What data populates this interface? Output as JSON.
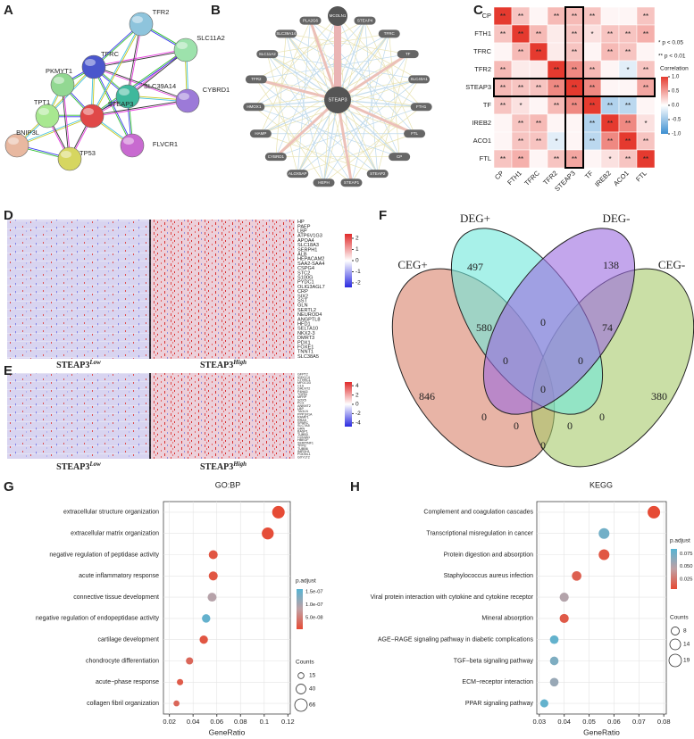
{
  "chart_data": [
    {
      "panel": "A",
      "type": "network",
      "nodes": [
        "TFR2",
        "SLC11A2",
        "PKMYT1",
        "TFRC",
        "SLC39A14",
        "CYBRD1",
        "TPT1",
        "STEAP3",
        "BNIP3L",
        "FLVCR1",
        "TP53"
      ],
      "colors": [
        "#8ec4dc",
        "#9de2ac",
        "#92d892",
        "#4a56cc",
        "#3fb89c",
        "#9c7ad8",
        "#a8e890",
        "#e04848",
        "#e8b8a0",
        "#c86ad0",
        "#d6d660"
      ]
    },
    {
      "panel": "B",
      "type": "radial",
      "center": "STEAP3",
      "nodes": [
        "MCOLN1",
        "STEAP4",
        "TFRC",
        "TF",
        "SLC40A1",
        "FTH1",
        "FTL",
        "CP",
        "STEAP2",
        "STEAP1",
        "HEPH",
        "ALOX5AP",
        "CYBRD1",
        "HAMP",
        "HMOX1",
        "TFR2",
        "SLC11A2",
        "SLC39A14",
        "PLA2G6"
      ]
    },
    {
      "panel": "C",
      "type": "heatmap",
      "labels": [
        "CP",
        "FTH1",
        "TFRC",
        "TFR2",
        "STEAP3",
        "TF",
        "IREB2",
        "ACO1",
        "FTL"
      ],
      "values": [
        [
          1,
          0.3,
          0.05,
          0.35,
          0.35,
          0.3,
          0.05,
          0.05,
          0.3
        ],
        [
          0.3,
          1,
          0.35,
          0.1,
          0.3,
          0.15,
          0.3,
          0.3,
          0.4
        ],
        [
          0.05,
          0.35,
          1,
          0.1,
          0.3,
          0.05,
          0.35,
          0.3,
          0.05
        ],
        [
          0.35,
          0.1,
          0.1,
          1,
          0.6,
          0.35,
          0.05,
          -0.15,
          0.3
        ],
        [
          0.35,
          0.3,
          0.3,
          0.6,
          1,
          0.6,
          0.05,
          0.05,
          0.45
        ],
        [
          0.3,
          0.15,
          0.05,
          0.35,
          0.6,
          1,
          -0.4,
          -0.35,
          0.05
        ],
        [
          0.05,
          0.3,
          0.35,
          0.05,
          0.05,
          -0.4,
          1,
          0.6,
          0.15
        ],
        [
          0.05,
          0.3,
          0.3,
          -0.15,
          0.05,
          -0.35,
          0.6,
          1,
          0.3
        ],
        [
          0.3,
          0.4,
          0.05,
          0.3,
          0.45,
          0.05,
          0.15,
          0.3,
          1
        ]
      ],
      "stars": [
        [
          "**",
          "**",
          null,
          "**",
          "**",
          "**",
          null,
          null,
          "**"
        ],
        [
          "**",
          "**",
          "**",
          null,
          "**",
          "*",
          "**",
          "**",
          "**"
        ],
        [
          null,
          "**",
          "**",
          null,
          "**",
          null,
          "**",
          "**",
          null
        ],
        [
          "**",
          null,
          null,
          "**",
          "**",
          "**",
          null,
          "*",
          "**"
        ],
        [
          "**",
          "**",
          "**",
          "**",
          "**",
          "**",
          null,
          null,
          "**"
        ],
        [
          "**",
          "*",
          null,
          "**",
          "**",
          "**",
          "**",
          "**",
          null
        ],
        [
          null,
          "**",
          "**",
          null,
          null,
          "**",
          "**",
          "**",
          "*"
        ],
        [
          null,
          "**",
          "**",
          "*",
          null,
          "**",
          "**",
          "**",
          "**"
        ],
        [
          "**",
          "**",
          null,
          "**",
          "**",
          null,
          "*",
          "**",
          "**"
        ]
      ],
      "notes": [
        "* p < 0.05",
        "** p < 0.01"
      ],
      "color_title": "Correlation",
      "clim": [
        -1,
        1
      ],
      "colors": [
        "#3d8fd1",
        "#ffffff",
        "#e53a2f"
      ],
      "colorbar_ticks": [
        {
          "value": 1,
          "label": "1.0"
        },
        {
          "value": 0.5,
          "label": "0.5"
        },
        {
          "value": 0,
          "label": "0.0"
        },
        {
          "value": -0.5,
          "label": "-0.5"
        },
        {
          "value": -1,
          "label": "-1.0"
        }
      ]
    },
    {
      "panel": "D",
      "type": "expression",
      "genes": [
        "HP",
        "PAEP",
        "LBP",
        "ATP6V1G3",
        "APOA4",
        "SLC18A3",
        "SERPH1",
        "ALB",
        "HEPACAM2",
        "SAA2-SAA4",
        "CSPG4",
        "STC2",
        "S100G",
        "PYDC1",
        "OLIG3AGL7",
        "CRP",
        "SIX2",
        "SST",
        "GLN",
        "SERTL2",
        "NEUROD4",
        "ANGPTL8",
        "HFD1",
        "SELTA10",
        "NKX2-3",
        "DMRT3",
        "PDX1",
        "FOXE1",
        "TNNT1",
        "SLC38A5"
      ],
      "groups": [
        {
          "name": "STEAP3",
          "sup": "Low"
        },
        {
          "name": "STEAP3",
          "sup": "High"
        }
      ],
      "colorbar_ticks": [
        2,
        1,
        0,
        -1,
        -2
      ],
      "clim": [
        -2.4,
        2.4
      ],
      "colors": [
        "#2a2ae0",
        "#ffffff",
        "#e02a2a"
      ]
    },
    {
      "panel": "E",
      "type": "expression",
      "genes": [
        "GFPT2",
        "IGDCC4",
        "CTHRC1",
        "MFGC03",
        "C1S",
        "GALNT2",
        "P4HA3",
        "TGFBI",
        "MFRP",
        "SOX5",
        "PLG",
        "ANKMT2",
        "LBP",
        "TAGLN",
        "PPP1R1A",
        "RAMP1",
        "RRAS",
        "SPARC",
        "SLC7A5",
        "GRN",
        "BASP1",
        "TUBB3",
        "COL6A1",
        "HBEGF",
        "SERPINF1",
        "TFPI2",
        "TUBB6",
        "IMPDH1",
        "PODNL1",
        "GXYLT2"
      ],
      "groups": [
        {
          "name": "STEAP3",
          "sup": "Low"
        },
        {
          "name": "STEAP3",
          "sup": "High"
        }
      ],
      "colorbar_ticks": [
        4,
        2,
        0,
        -2,
        -4
      ],
      "clim": [
        -4.8,
        4.8
      ],
      "colors": [
        "#2a2ae0",
        "#ffffff",
        "#e02a2a"
      ]
    },
    {
      "panel": "F",
      "type": "venn",
      "sets": [
        "DEG+",
        "DEG-",
        "CEG+",
        "CEG-"
      ],
      "colors": [
        "#6ee8da",
        "#9b6be0",
        "#d9826b",
        "#a6c96a"
      ],
      "values": [
        497,
        138,
        580,
        0,
        74,
        846,
        380,
        0,
        0,
        0,
        0,
        0,
        0,
        0,
        0
      ]
    },
    {
      "panel": "G",
      "type": "dot",
      "title": "GO:BP",
      "xlabel": "GeneRatio",
      "categories": [
        "extracellular structure organization",
        "extracellular matrix organization",
        "negative regulation of peptidase activity",
        "acute inflammatory response",
        "connective tissue development",
        "negative regulation of endopeptidase activity",
        "cartilage development",
        "chondrocyte differentiation",
        "acute−phase response",
        "collagen fibril organization"
      ],
      "values": [
        0.112,
        0.103,
        0.057,
        0.057,
        0.056,
        0.051,
        0.049,
        0.037,
        0.029,
        0.026
      ],
      "counts": [
        66,
        60,
        34,
        34,
        33,
        30,
        29,
        22,
        17,
        15
      ],
      "p_adjust": [
        5e-09,
        8e-09,
        1.5e-08,
        1.5e-08,
        9e-08,
        1.5e-07,
        1.5e-08,
        3e-08,
        2e-08,
        3e-08
      ],
      "xlim": [
        0.015,
        0.122
      ],
      "xticks": [
        0.02,
        0.04,
        0.06,
        0.08,
        0.1,
        0.12
      ],
      "color_title": "p.adjust",
      "clim": [
        5e-09,
        1.6e-07
      ],
      "colorbar_ticks": [
        {
          "value": 1.5e-07,
          "label": "1.5e-07"
        },
        {
          "value": 1e-07,
          "label": "1.0e-07"
        },
        {
          "value": 5e-08,
          "label": "5.0e-08"
        }
      ],
      "colors": [
        "#e64b35",
        "#c0a0a4",
        "#56b4d3"
      ],
      "size_title": "Counts",
      "size_ticks": [
        15,
        40,
        66
      ],
      "grid": true
    },
    {
      "panel": "H",
      "type": "dot",
      "title": "KEGG",
      "xlabel": "GeneRatio",
      "categories": [
        "Complement and coagulation cascades",
        "Transcriptional misregulation in cancer",
        "Protein digestion and absorption",
        "Staphylococcus aureus infection",
        "Viral protein interaction with cytokine and cytokine receptor",
        "Mineral absorption",
        "AGE−RAGE signaling pathway in diabetic complications",
        "TGF−beta signaling pathway",
        "ECM−receptor interaction",
        "PPAR signaling pathway"
      ],
      "values": [
        0.076,
        0.056,
        0.056,
        0.045,
        0.04,
        0.04,
        0.036,
        0.036,
        0.036,
        0.032
      ],
      "counts": [
        19,
        14,
        14,
        11,
        10,
        10,
        9,
        9,
        9,
        8
      ],
      "p_adjust": [
        0.005,
        0.075,
        0.01,
        0.015,
        0.05,
        0.012,
        0.08,
        0.07,
        0.06,
        0.08
      ],
      "xlim": [
        0.029,
        0.081
      ],
      "xticks": [
        0.03,
        0.04,
        0.05,
        0.06,
        0.07,
        0.08
      ],
      "color_title": "p.adjust",
      "clim": [
        0.005,
        0.085
      ],
      "colorbar_ticks": [
        0.075,
        {
          "value": 0.05,
          "label": "0.050"
        },
        0.025
      ],
      "colors": [
        "#e64b35",
        "#c0a0a4",
        "#56b4d3"
      ],
      "size_title": "Counts",
      "size_ticks": [
        8,
        14,
        19
      ],
      "grid": true
    }
  ]
}
